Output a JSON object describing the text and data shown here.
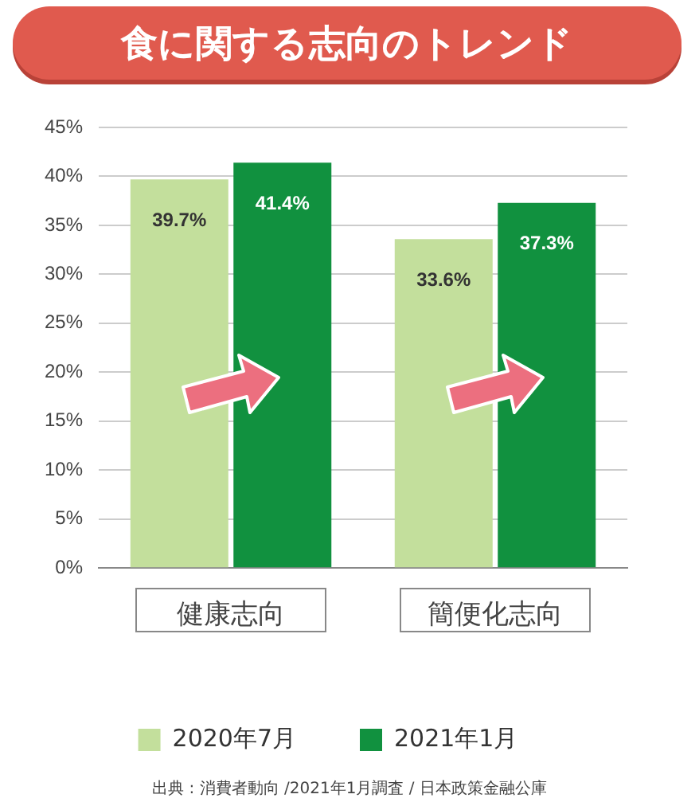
{
  "chart_data": {
    "type": "bar",
    "title": "食に関する志向のトレンド",
    "categories": [
      "健康志向",
      "簡便化志向"
    ],
    "series": [
      {
        "name": "2020年7月",
        "color": "#c3df9c",
        "values": [
          39.7,
          33.6
        ]
      },
      {
        "name": "2021年1月",
        "color": "#11913f",
        "values": [
          41.4,
          37.3
        ]
      }
    ],
    "ylim": [
      0,
      45
    ],
    "yticks": [
      {
        "value": 0,
        "label": "0%"
      },
      {
        "value": 5,
        "label": "5%"
      },
      {
        "value": 10,
        "label": "10%"
      },
      {
        "value": 15,
        "label": "15%"
      },
      {
        "value": 20,
        "label": "20%"
      },
      {
        "value": 25,
        "label": "25%"
      },
      {
        "value": 30,
        "label": "30%"
      },
      {
        "value": 35,
        "label": "35%"
      },
      {
        "value": 40,
        "label": "40%"
      },
      {
        "value": 45,
        "label": "45%"
      }
    ],
    "value_labels": [
      "39.7%",
      "33.6%",
      "41.4%",
      "37.3%"
    ],
    "grid": "y",
    "legend": "bottom",
    "annotations": [
      "出典 : 消費者動向 /2021年1月調査 / 日本政策金融公庫"
    ]
  }
}
